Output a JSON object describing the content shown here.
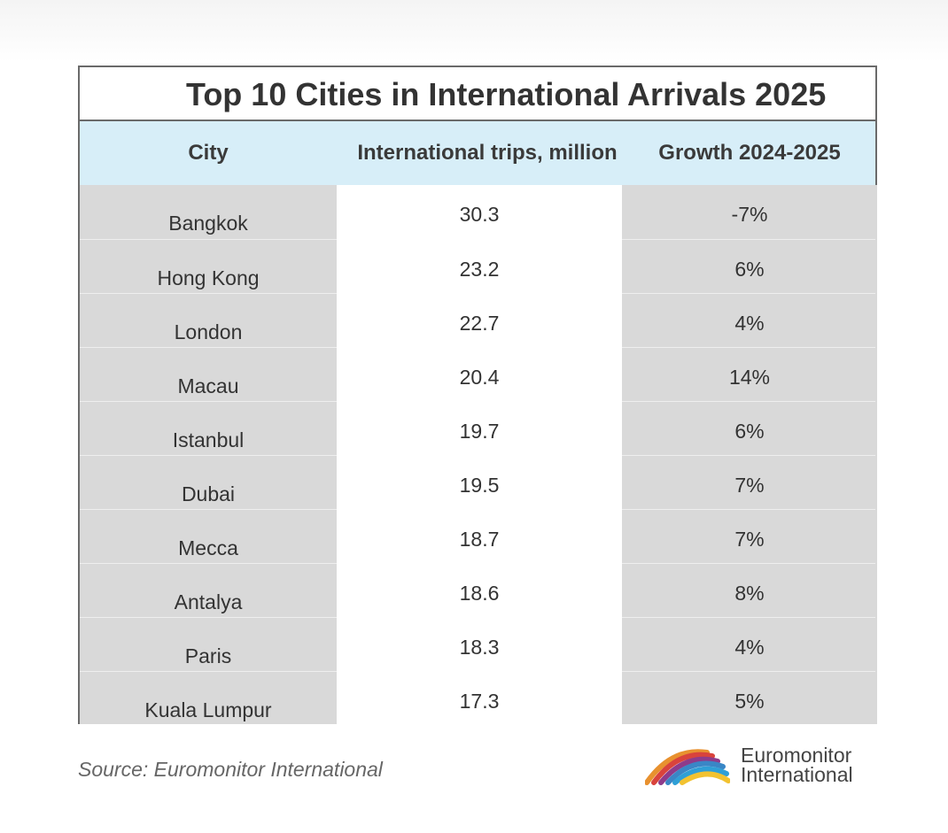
{
  "chart_data": {
    "type": "table",
    "title": "Top 10 Cities in International Arrivals 2025",
    "columns": [
      "City",
      "International trips, million",
      "Growth 2024-2025"
    ],
    "rows": [
      {
        "city": "Bangkok",
        "trips": "30.3",
        "growth": "-7%"
      },
      {
        "city": "Hong Kong",
        "trips": "23.2",
        "growth": "6%"
      },
      {
        "city": "London",
        "trips": "22.7",
        "growth": "4%"
      },
      {
        "city": "Macau",
        "trips": "20.4",
        "growth": "14%"
      },
      {
        "city": "Istanbul",
        "trips": "19.7",
        "growth": "6%"
      },
      {
        "city": "Dubai",
        "trips": "19.5",
        "growth": "7%"
      },
      {
        "city": "Mecca",
        "trips": "18.7",
        "growth": "7%"
      },
      {
        "city": "Antalya",
        "trips": "18.6",
        "growth": "8%"
      },
      {
        "city": "Paris",
        "trips": "18.3",
        "growth": "4%"
      },
      {
        "city": "Kuala Lumpur",
        "trips": "17.3",
        "growth": "5%"
      }
    ]
  },
  "footer": {
    "source": "Source: Euromonitor International",
    "brand_line1": "Euromonitor",
    "brand_line2": "International"
  },
  "colors": {
    "header_bg": "#d7eef8",
    "grey_col": "#d9d9d9",
    "white_col": "#ffffff",
    "logo": [
      "#e8912f",
      "#d9433c",
      "#8e3b8a",
      "#3a86c6",
      "#2f9fd6",
      "#f2c230"
    ]
  }
}
